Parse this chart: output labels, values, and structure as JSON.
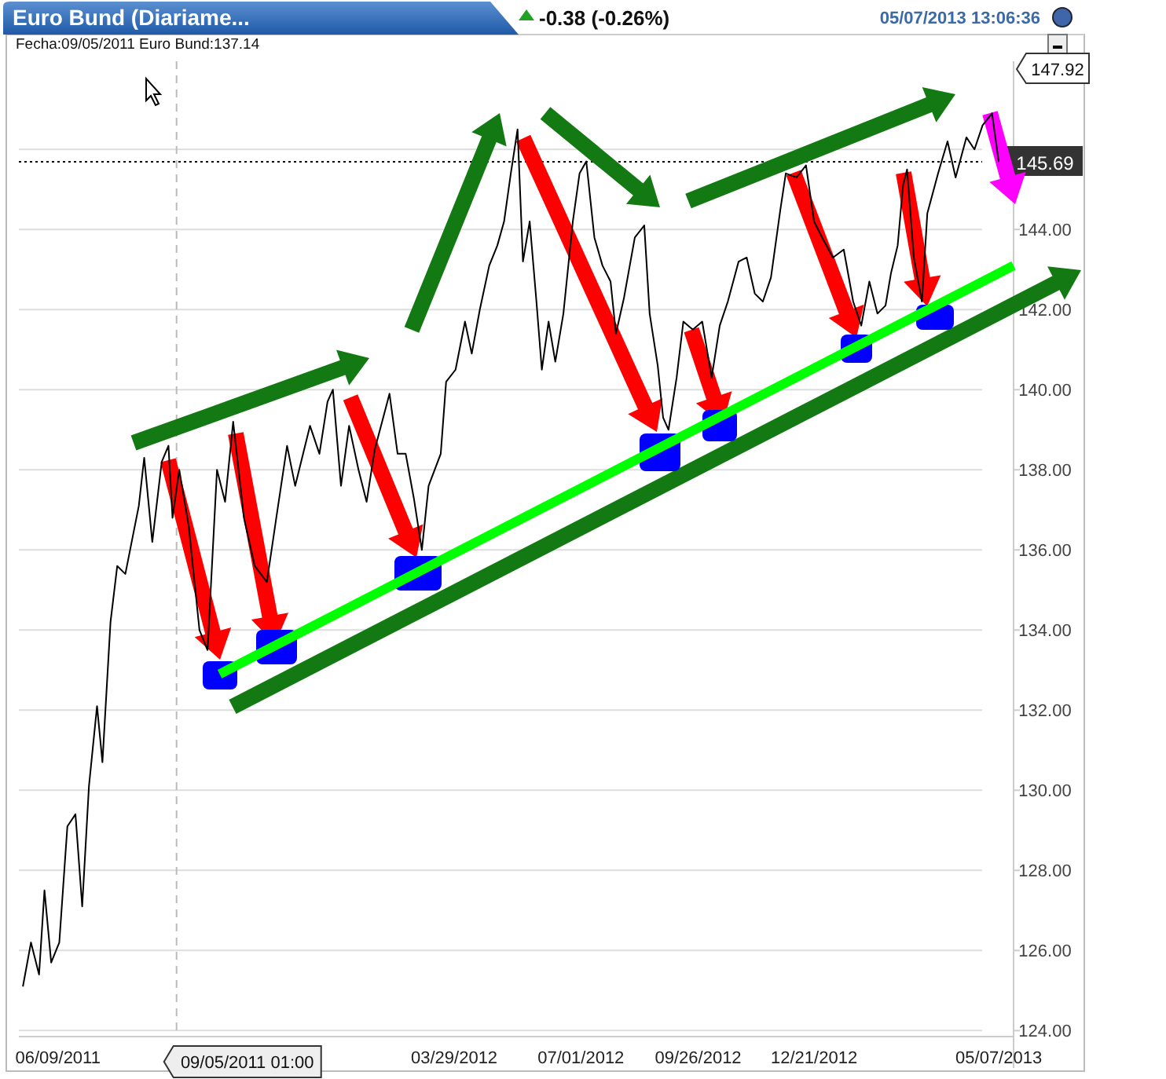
{
  "chart_data": {
    "type": "line",
    "title": "Euro Bund (Diariame...",
    "subtitle": "-0.38 (-0.26%)",
    "annotations": [
      "05/07/2013 13:06:36",
      "Fecha:09/05/2011 Euro Bund:137.14",
      "147.92"
    ],
    "x": [
      "2011-05-14",
      "2011-05-20",
      "2011-05-26",
      "2011-05-30",
      "2011-06-04",
      "2011-06-10",
      "2011-06-16",
      "2011-06-22",
      "2011-06-27",
      "2011-07-02",
      "2011-07-08",
      "2011-07-12",
      "2011-07-18",
      "2011-07-23",
      "2011-07-29",
      "2011-08-08",
      "2011-08-12",
      "2011-08-18",
      "2011-08-25",
      "2011-08-30",
      "2011-09-02",
      "2011-09-07",
      "2011-09-14",
      "2011-09-22",
      "2011-09-28",
      "2011-10-05",
      "2011-10-11",
      "2011-10-17",
      "2011-10-25",
      "2011-11-02",
      "2011-11-11",
      "2011-11-18",
      "2011-11-26",
      "2011-12-02",
      "2011-12-13",
      "2011-12-20",
      "2011-12-26",
      "2011-12-30",
      "2012-01-05",
      "2012-01-11",
      "2012-01-18",
      "2012-01-24",
      "2012-01-30",
      "2012-02-10",
      "2012-02-16",
      "2012-02-22",
      "2012-02-28",
      "2012-03-05",
      "2012-03-10",
      "2012-03-19",
      "2012-03-23",
      "2012-03-30",
      "2012-04-06",
      "2012-04-11",
      "2012-04-17",
      "2012-04-24",
      "2012-04-30",
      "2012-05-05",
      "2012-05-10",
      "2012-05-15",
      "2012-05-19",
      "2012-05-24",
      "2012-05-29",
      "2012-06-02",
      "2012-06-07",
      "2012-06-12",
      "2012-06-18",
      "2012-06-25",
      "2012-06-30",
      "2012-07-05",
      "2012-07-11",
      "2012-07-17",
      "2012-07-23",
      "2012-07-27",
      "2012-08-02",
      "2012-08-10",
      "2012-08-17",
      "2012-08-21",
      "2012-08-27",
      "2012-08-31",
      "2012-09-04",
      "2012-09-10",
      "2012-09-15",
      "2012-09-22",
      "2012-09-29",
      "2012-10-06",
      "2012-10-12",
      "2012-10-18",
      "2012-10-26",
      "2012-11-01",
      "2012-11-07",
      "2012-11-13",
      "2012-11-19",
      "2012-11-26",
      "2012-11-30",
      "2012-12-08",
      "2012-12-15",
      "2012-12-21",
      "2012-12-27",
      "2013-01-04",
      "2013-01-12",
      "2013-01-19",
      "2013-01-25",
      "2013-01-31",
      "2013-02-06",
      "2013-02-12",
      "2013-02-16",
      "2013-02-21",
      "2013-02-25",
      "2013-02-28",
      "2013-03-05",
      "2013-03-11",
      "2013-03-15",
      "2013-03-23",
      "2013-03-30",
      "2013-04-05",
      "2013-04-13",
      "2013-04-19",
      "2013-04-25",
      "2013-05-02",
      "2013-05-07"
    ],
    "series": [
      {
        "color": "#000000",
        "values": [
          125.1,
          126.2,
          125.4,
          127.5,
          125.7,
          126.2,
          129.1,
          129.4,
          127.1,
          130.1,
          132.1,
          130.7,
          134.2,
          135.6,
          135.4,
          137.1,
          138.3,
          136.2,
          138.2,
          138.6,
          136.8,
          138.0,
          136.6,
          134.0,
          133.5,
          138.0,
          137.2,
          139.2,
          136.8,
          135.6,
          135.2,
          136.8,
          138.6,
          137.6,
          139.1,
          138.4,
          139.7,
          140.0,
          137.6,
          139.1,
          138.0,
          137.2,
          138.5,
          139.9,
          138.4,
          138.4,
          137.3,
          136.0,
          137.6,
          138.4,
          140.2,
          140.5,
          141.7,
          140.9,
          142.0,
          143.1,
          143.6,
          144.2,
          145.4,
          146.5,
          143.2,
          144.2,
          142.2,
          140.5,
          141.7,
          140.7,
          141.9,
          144.2,
          145.4,
          145.7,
          143.8,
          143.1,
          142.7,
          141.4,
          142.3,
          143.8,
          144.1,
          141.9,
          140.6,
          139.3,
          139.0,
          140.3,
          141.7,
          141.5,
          141.7,
          140.3,
          141.6,
          142.2,
          143.2,
          143.3,
          142.4,
          142.2,
          142.8,
          144.5,
          145.4,
          145.3,
          145.6,
          144.2,
          143.8,
          143.3,
          143.5,
          142.2,
          141.6,
          142.7,
          141.9,
          142.1,
          142.9,
          143.6,
          145.1,
          145.5,
          143.3,
          142.2,
          144.4,
          145.4,
          146.2,
          145.3,
          146.3,
          146.0,
          146.6,
          146.9,
          145.69
        ]
      },
      {
        "type": "line",
        "color": "#00ff00",
        "x": [
          "2011-10-07",
          "2013-05-18"
        ],
        "values": [
          132.9,
          143.1
        ]
      }
    ],
    "xlim": [
      "2011-05-11",
      "2013-05-18"
    ],
    "ylim": [
      123.85,
      148.2
    ],
    "xticks": [
      {
        "value": "2011-06-09",
        "label": "06/09/2011"
      },
      {
        "value": "2012-03-29",
        "label": "03/29/2012"
      },
      {
        "value": "2012-07-01",
        "label": "07/01/2012"
      },
      {
        "value": "2012-09-26",
        "label": "09/26/2012"
      },
      {
        "value": "2012-12-21",
        "label": "12/21/2012"
      },
      {
        "value": "2013-05-07",
        "label": "05/07/2013"
      }
    ],
    "yticks": [
      {
        "value": 124,
        "label": "124.00"
      },
      {
        "value": 126,
        "label": "126.00"
      },
      {
        "value": 128,
        "label": "128.00"
      },
      {
        "value": 130,
        "label": "130.00"
      },
      {
        "value": 132,
        "label": "132.00"
      },
      {
        "value": 134,
        "label": "134.00"
      },
      {
        "value": 136,
        "label": "136.00"
      },
      {
        "value": 138,
        "label": "138.00"
      },
      {
        "value": 140,
        "label": "140.00"
      },
      {
        "value": 142,
        "label": "142.00"
      },
      {
        "value": 144,
        "label": "144.00"
      },
      {
        "value": 146,
        "label": null
      }
    ],
    "grid": "y",
    "ref_lines": [
      {
        "axis": "y",
        "value": 145.69,
        "label": "145.69",
        "color": "#000000",
        "line_style": "dotted"
      },
      {
        "axis": "x",
        "value": "2011-09-05",
        "label": "09/05/2011 01:00",
        "color": "#bbbbbb",
        "line_style": "dashed"
      }
    ]
  }
}
